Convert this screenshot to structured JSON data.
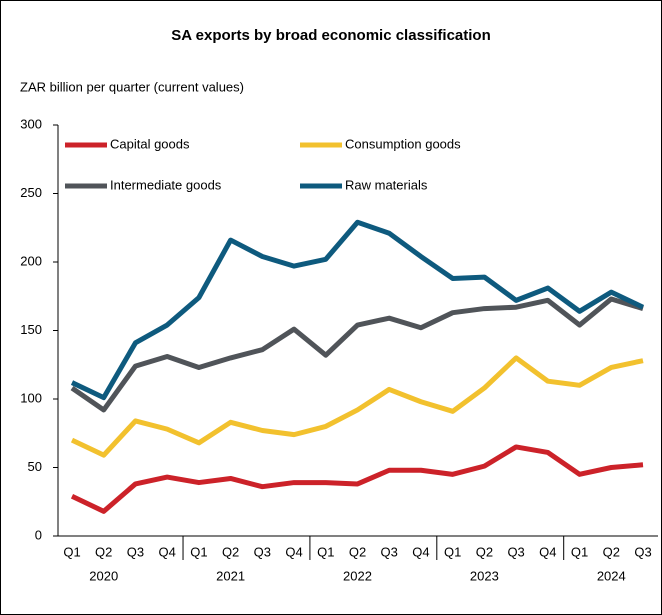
{
  "chart_data": {
    "type": "line",
    "title": "SA exports by broad economic classification",
    "subtitle": "ZAR billion per quarter (current values)",
    "categories": [
      "Q1",
      "Q2",
      "Q3",
      "Q4",
      "Q1",
      "Q2",
      "Q3",
      "Q4",
      "Q1",
      "Q2",
      "Q3",
      "Q4",
      "Q1",
      "Q2",
      "Q3",
      "Q4",
      "Q1",
      "Q2",
      "Q3"
    ],
    "years": [
      "2020",
      "2021",
      "2022",
      "2023",
      "2024"
    ],
    "series": [
      {
        "name": "Capital goods",
        "color": "#cc2229",
        "values": [
          29,
          18,
          38,
          43,
          39,
          42,
          36,
          39,
          39,
          38,
          48,
          48,
          45,
          51,
          65,
          61,
          45,
          50,
          52
        ]
      },
      {
        "name": "Consumption goods",
        "color": "#f2c12e",
        "values": [
          70,
          59,
          84,
          78,
          68,
          83,
          77,
          74,
          80,
          92,
          107,
          98,
          91,
          108,
          130,
          113,
          110,
          123,
          128
        ]
      },
      {
        "name": "Intermediate goods",
        "color": "#505459",
        "values": [
          108,
          92,
          124,
          131,
          123,
          130,
          136,
          151,
          132,
          154,
          159,
          152,
          163,
          166,
          167,
          172,
          154,
          173,
          166
        ]
      },
      {
        "name": "Raw materials",
        "color": "#0e5a7e",
        "values": [
          112,
          101,
          141,
          154,
          174,
          216,
          204,
          197,
          202,
          229,
          221,
          204,
          188,
          189,
          172,
          181,
          164,
          178,
          167
        ]
      }
    ],
    "ylim": [
      0,
      300
    ],
    "yticks": [
      0,
      50,
      100,
      150,
      200,
      250,
      300
    ],
    "legend": "top-left"
  }
}
